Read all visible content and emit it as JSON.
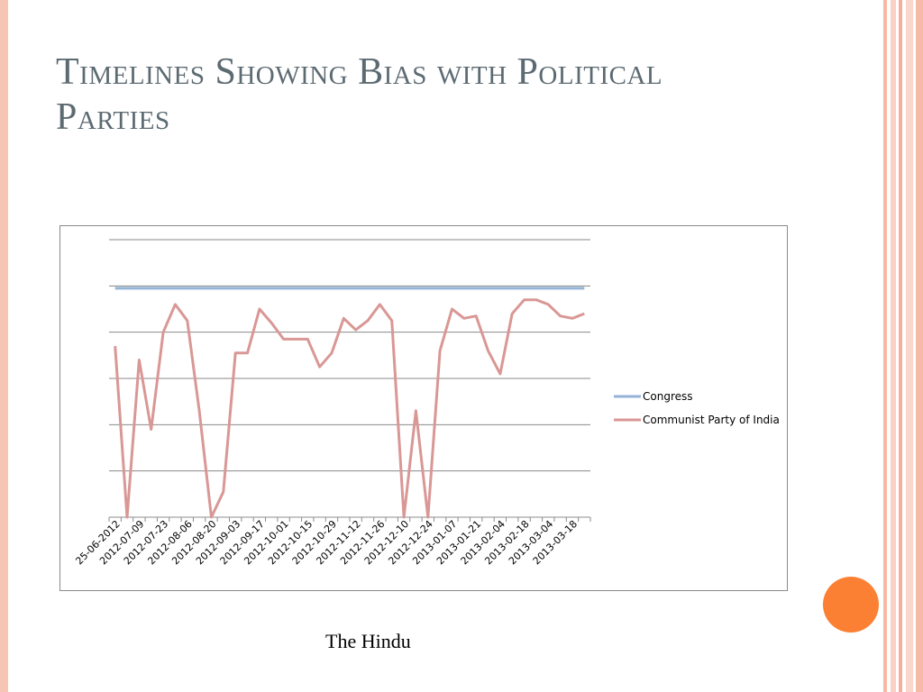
{
  "slide": {
    "title": "Timelines Showing Bias with Political Parties",
    "source": "The Hindu"
  },
  "colors": {
    "congress": "#95b3d7",
    "cpi": "#d99795",
    "accent": "#fc8033",
    "title": "#5c6a72"
  },
  "chart_data": {
    "type": "line",
    "title": "",
    "xlabel": "",
    "ylabel": "",
    "ylim": [
      0,
      6
    ],
    "grid": true,
    "legend_position": "right",
    "y_ticks_shown": false,
    "x_tick_labels": [
      "25-06-2012",
      "2012-07-09",
      "2012-07-23",
      "2012-08-06",
      "2012-08-20",
      "2012-09-03",
      "2012-09-17",
      "2012-10-01",
      "2012-10-15",
      "2012-10-29",
      "2012-11-12",
      "2012-11-26",
      "2012-12-10",
      "2012-12-24",
      "2013-01-07",
      "2013-01-21",
      "2013-02-04",
      "2013-02-18",
      "2013-03-04",
      "2013-03-18"
    ],
    "series": [
      {
        "name": "Congress",
        "color": "#95b3d7",
        "values": [
          4.95,
          4.95,
          4.95,
          4.95,
          4.95,
          4.95,
          4.95,
          4.95,
          4.95,
          4.95,
          4.95,
          4.95,
          4.95,
          4.95,
          4.95,
          4.95,
          4.95,
          4.95,
          4.95,
          4.95,
          4.95,
          4.95,
          4.95,
          4.95,
          4.95,
          4.95,
          4.95,
          4.95,
          4.95,
          4.95,
          4.95,
          4.95,
          4.95,
          4.95,
          4.95,
          4.95,
          4.95,
          4.95,
          4.95,
          4.95
        ]
      },
      {
        "name": "Communist Party of India",
        "color": "#d99795",
        "values": [
          3.7,
          0.0,
          3.4,
          1.9,
          4.0,
          4.6,
          4.25,
          2.3,
          0.0,
          0.55,
          3.55,
          3.55,
          4.5,
          4.2,
          3.85,
          3.85,
          3.85,
          3.25,
          3.55,
          4.3,
          4.05,
          4.25,
          4.6,
          4.25,
          0.0,
          2.3,
          0.0,
          3.6,
          4.5,
          4.3,
          4.35,
          3.6,
          3.1,
          4.4,
          4.7,
          4.7,
          4.6,
          4.35,
          4.3,
          4.4
        ]
      }
    ]
  }
}
